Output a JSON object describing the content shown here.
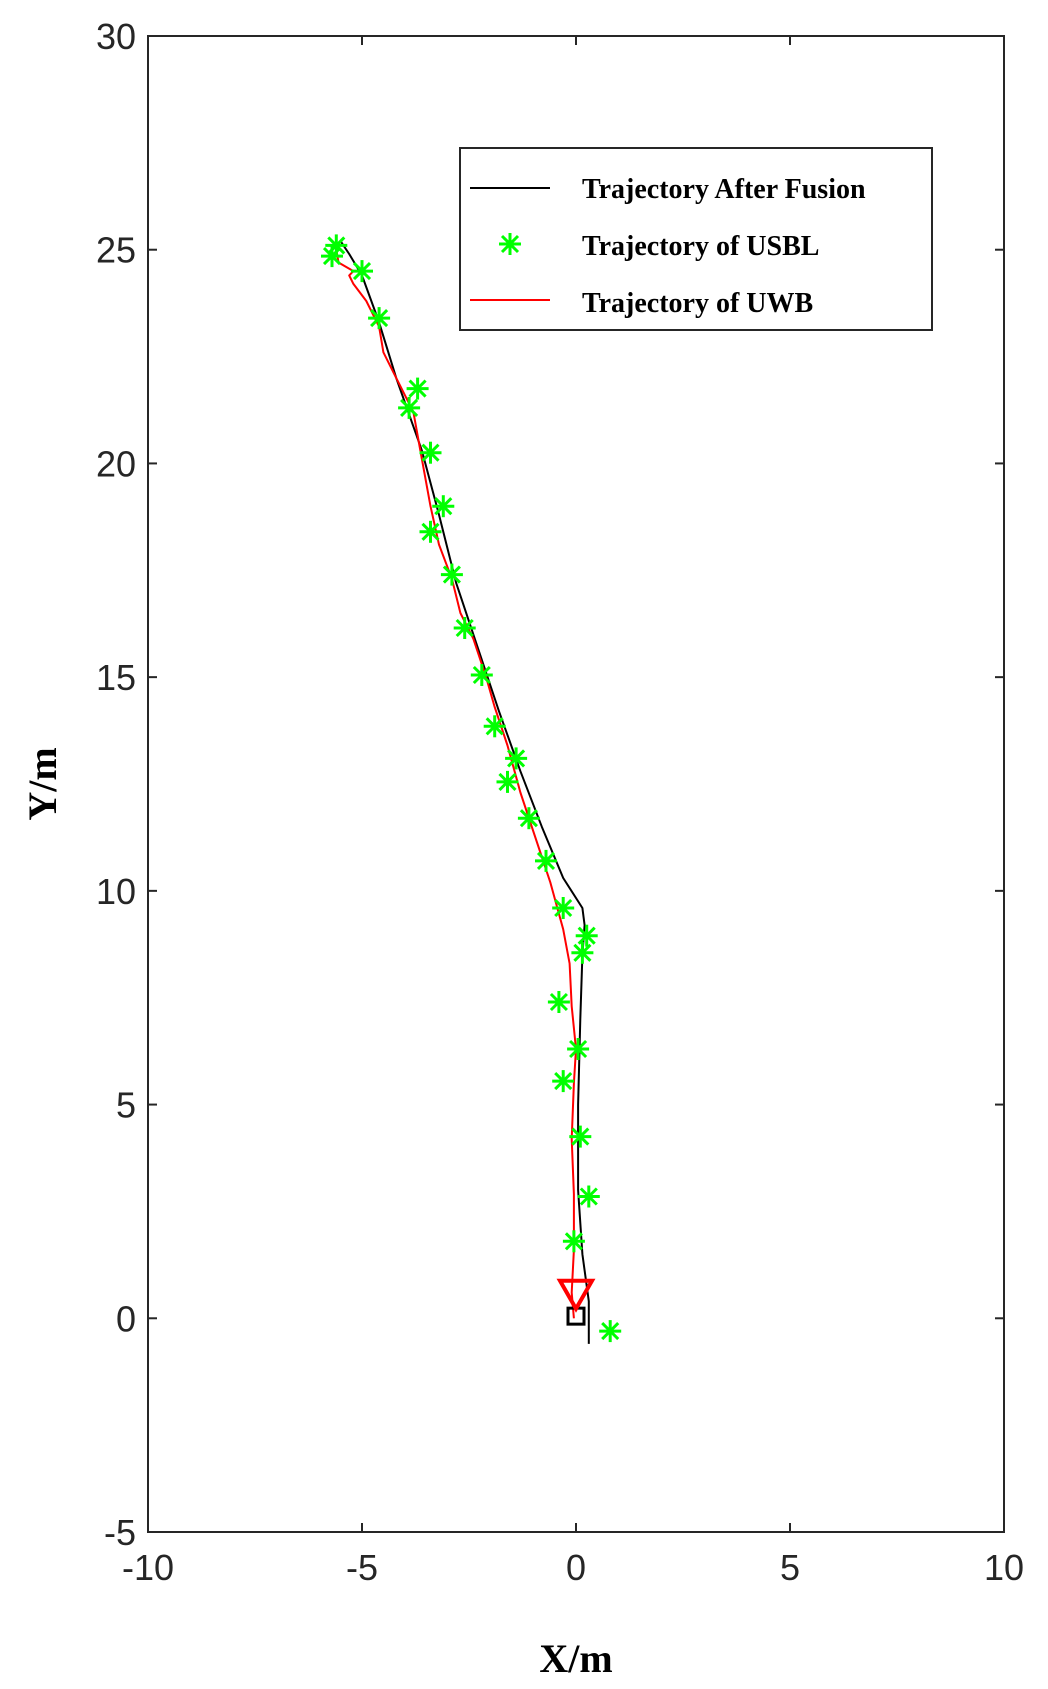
{
  "chart_data": {
    "type": "line",
    "xlabel": "X/m",
    "ylabel": "Y/m",
    "xlim": [
      -10,
      10
    ],
    "ylim": [
      -5,
      30
    ],
    "xticks": [
      "-10",
      "-5",
      "0",
      "5",
      "10"
    ],
    "yticks": [
      "-5",
      "0",
      "5",
      "10",
      "15",
      "20",
      "25",
      "30"
    ],
    "grid": false,
    "legend_position": "top-right",
    "series": [
      {
        "name": "Trajectory After Fusion",
        "color": "#000000",
        "style": "line",
        "x": [
          0.3,
          0.3,
          0.15,
          0.05,
          0.05,
          0.1,
          0.15,
          0.2,
          0.15,
          -0.3,
          -0.8,
          -1.3,
          -1.8,
          -2.3,
          -2.8,
          -3.2,
          -3.6,
          -4.2,
          -4.6,
          -5.0,
          -5.3,
          -5.5
        ],
        "y": [
          -0.6,
          0.4,
          1.5,
          3.0,
          5.0,
          7.0,
          8.5,
          9.2,
          9.6,
          10.3,
          11.5,
          12.8,
          14.2,
          15.7,
          17.2,
          18.8,
          20.3,
          22.0,
          23.3,
          24.4,
          24.9,
          25.2
        ]
      },
      {
        "name": "Trajectory of USBL",
        "color": "#00FF00",
        "style": "marker-asterisk",
        "x": [
          -5.6,
          -5.7,
          -5.0,
          -4.6,
          -3.7,
          -3.9,
          -3.4,
          -3.1,
          -3.4,
          -2.9,
          -2.6,
          -2.2,
          -1.9,
          -1.4,
          -1.6,
          -1.1,
          -0.7,
          -0.3,
          0.25,
          0.15,
          -0.4,
          0.05,
          -0.3,
          0.1,
          0.3,
          -0.05,
          0.8
        ],
        "y": [
          25.1,
          24.85,
          24.5,
          23.4,
          21.75,
          21.3,
          20.25,
          19.0,
          18.4,
          17.4,
          16.15,
          15.05,
          13.85,
          13.1,
          12.55,
          11.7,
          10.7,
          9.6,
          8.95,
          8.55,
          7.4,
          6.3,
          5.55,
          4.25,
          2.85,
          1.8,
          -0.3
        ]
      },
      {
        "name": "Trajectory of UWB",
        "color": "#FF0000",
        "style": "line",
        "x": [
          -0.05,
          -0.1,
          -0.05,
          -0.05,
          -0.1,
          -0.05,
          0.0,
          -0.1,
          -0.15,
          -0.3,
          -0.6,
          -1.0,
          -1.3,
          -1.6,
          -1.9,
          -2.1,
          -2.4,
          -2.7,
          -2.9,
          -3.2,
          -3.4,
          -3.6,
          -3.8,
          -4.2,
          -4.5,
          -4.6,
          -4.9,
          -5.2,
          -5.3,
          -5.2,
          -5.55,
          -5.6
        ],
        "y": [
          0.0,
          0.6,
          1.6,
          2.9,
          4.2,
          5.5,
          6.3,
          7.3,
          8.3,
          9.1,
          10.2,
          11.4,
          12.3,
          13.4,
          14.3,
          15.0,
          15.9,
          16.5,
          17.3,
          18.1,
          19.0,
          20.1,
          21.2,
          22.0,
          22.6,
          23.2,
          23.8,
          24.2,
          24.4,
          24.5,
          24.7,
          25.0
        ]
      }
    ],
    "markers": [
      {
        "type": "square",
        "color": "#000000",
        "x": 0.0,
        "y": 0.05
      },
      {
        "type": "triangle-down",
        "color": "#FF0000",
        "x": 0.0,
        "y": 0.55
      }
    ]
  }
}
